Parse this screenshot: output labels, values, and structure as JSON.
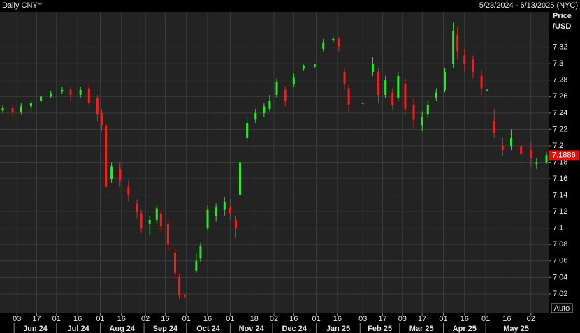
{
  "chart_data": {
    "type": "candlestick",
    "title": "Daily CNY=",
    "date_range": "5/23/2024 - 6/13/2025 (NYC)",
    "y_label": [
      "Price",
      "/USD"
    ],
    "auto_button": "Auto",
    "up_color": "#22ee22",
    "down_color": "#ff1a1a",
    "x": [
      "2024-05-24",
      "2024-05-31",
      "2024-06-06",
      "2024-06-13",
      "2024-06-20",
      "2024-06-27",
      "2024-07-05",
      "2024-07-11",
      "2024-07-18",
      "2024-07-24",
      "2024-07-30",
      "2024-08-02",
      "2024-08-05",
      "2024-08-09",
      "2024-08-15",
      "2024-08-21",
      "2024-08-27",
      "2024-08-30",
      "2024-09-05",
      "2024-09-10",
      "2024-09-13",
      "2024-09-18",
      "2024-09-23",
      "2024-09-26",
      "2024-09-30",
      "2024-10-08",
      "2024-10-11",
      "2024-10-16",
      "2024-10-22",
      "2024-10-28",
      "2024-11-01",
      "2024-11-05",
      "2024-11-08",
      "2024-11-13",
      "2024-11-19",
      "2024-11-25",
      "2024-11-29",
      "2024-12-04",
      "2024-12-10",
      "2024-12-16",
      "2024-12-23",
      "2024-12-31",
      "2025-01-06",
      "2025-01-13",
      "2025-01-17",
      "2025-01-21",
      "2025-01-24",
      "2025-02-03",
      "2025-02-10",
      "2025-02-14",
      "2025-02-19",
      "2025-02-24",
      "2025-02-28",
      "2025-03-05",
      "2025-03-11",
      "2025-03-17",
      "2025-03-21",
      "2025-03-27",
      "2025-04-02",
      "2025-04-08",
      "2025-04-11",
      "2025-04-16",
      "2025-04-22",
      "2025-04-28",
      "2025-05-02",
      "2025-05-07",
      "2025-05-13",
      "2025-05-19",
      "2025-05-26",
      "2025-06-02",
      "2025-06-06",
      "2025-06-13"
    ],
    "open": [
      7.243,
      7.246,
      7.241,
      7.248,
      7.255,
      7.26,
      7.266,
      7.268,
      7.262,
      7.27,
      7.258,
      7.24,
      7.225,
      7.16,
      7.172,
      7.15,
      7.13,
      7.118,
      7.105,
      7.11,
      7.118,
      7.105,
      7.07,
      7.04,
      7.018,
      7.048,
      7.063,
      7.1,
      7.115,
      7.122,
      7.125,
      7.11,
      7.14,
      7.21,
      7.232,
      7.24,
      7.245,
      7.262,
      7.268,
      7.275,
      7.294,
      7.297,
      7.318,
      7.328,
      7.33,
      7.29,
      7.27,
      7.252,
      7.29,
      7.29,
      7.262,
      7.265,
      7.258,
      7.275,
      7.25,
      7.225,
      7.238,
      7.258,
      7.268,
      7.3,
      7.335,
      7.31,
      7.305,
      7.285,
      7.268,
      7.23,
      7.2,
      7.2,
      7.2,
      7.195,
      7.178,
      7.18
    ],
    "high": [
      7.249,
      7.25,
      7.252,
      7.255,
      7.262,
      7.267,
      7.272,
      7.272,
      7.272,
      7.276,
      7.262,
      7.245,
      7.23,
      7.18,
      7.18,
      7.158,
      7.135,
      7.122,
      7.115,
      7.128,
      7.122,
      7.11,
      7.075,
      7.044,
      7.02,
      7.07,
      7.082,
      7.128,
      7.13,
      7.138,
      7.135,
      7.115,
      7.188,
      7.235,
      7.245,
      7.252,
      7.262,
      7.282,
      7.272,
      7.288,
      7.299,
      7.3,
      7.33,
      7.333,
      7.332,
      7.295,
      7.274,
      7.253,
      7.308,
      7.295,
      7.285,
      7.27,
      7.29,
      7.282,
      7.258,
      7.242,
      7.256,
      7.27,
      7.295,
      7.35,
      7.345,
      7.318,
      7.31,
      7.292,
      7.269,
      7.245,
      7.21,
      7.22,
      7.205,
      7.205,
      7.185,
      7.192
    ],
    "low": [
      7.24,
      7.236,
      7.238,
      7.244,
      7.252,
      7.258,
      7.263,
      7.254,
      7.258,
      7.248,
      7.23,
      7.218,
      7.128,
      7.155,
      7.15,
      7.132,
      7.112,
      7.094,
      7.092,
      7.105,
      7.095,
      7.072,
      7.038,
      7.013,
      7.015,
      7.045,
      7.058,
      7.098,
      7.108,
      7.115,
      7.11,
      7.088,
      7.13,
      7.205,
      7.228,
      7.235,
      7.242,
      7.258,
      7.248,
      7.272,
      7.292,
      7.295,
      7.315,
      7.326,
      7.315,
      7.268,
      7.24,
      7.251,
      7.285,
      7.252,
      7.258,
      7.244,
      7.254,
      7.238,
      7.222,
      7.218,
      7.234,
      7.255,
      7.265,
      7.295,
      7.305,
      7.29,
      7.282,
      7.262,
      7.267,
      7.21,
      7.188,
      7.195,
      7.18,
      7.175,
      7.172,
      7.178
    ],
    "close": [
      7.246,
      7.241,
      7.248,
      7.252,
      7.26,
      7.264,
      7.268,
      7.262,
      7.268,
      7.252,
      7.238,
      7.225,
      7.15,
      7.175,
      7.158,
      7.14,
      7.12,
      7.1,
      7.11,
      7.124,
      7.102,
      7.08,
      7.045,
      7.018,
      7.017,
      7.06,
      7.078,
      7.122,
      7.125,
      7.132,
      7.118,
      7.1,
      7.18,
      7.228,
      7.24,
      7.248,
      7.255,
      7.278,
      7.255,
      7.283,
      7.297,
      7.299,
      7.326,
      7.33,
      7.32,
      7.275,
      7.25,
      7.252,
      7.3,
      7.262,
      7.28,
      7.25,
      7.285,
      7.245,
      7.232,
      7.235,
      7.25,
      7.265,
      7.29,
      7.34,
      7.315,
      7.3,
      7.29,
      7.27,
      7.268,
      7.215,
      7.195,
      7.21,
      7.19,
      7.185,
      7.18,
      7.1886
    ],
    "last_price": 7.1886,
    "xlim": [
      "2024-05-23",
      "2025-06-13"
    ],
    "ylim": [
      6.997,
      7.363
    ],
    "yticks": [
      7.02,
      7.04,
      7.06,
      7.08,
      7.1,
      7.12,
      7.14,
      7.16,
      7.18,
      7.2,
      7.22,
      7.24,
      7.26,
      7.28,
      7.3,
      7.32
    ],
    "xticks": [
      {
        "value": "2024-06-03",
        "label": "03"
      },
      {
        "value": "2024-06-17",
        "label": "17"
      },
      {
        "value": "2024-07-01",
        "label": "01"
      },
      {
        "value": "2024-07-16",
        "label": "16"
      },
      {
        "value": "2024-08-01",
        "label": "01"
      },
      {
        "value": "2024-08-16",
        "label": "16"
      },
      {
        "value": "2024-09-02",
        "label": "02"
      },
      {
        "value": "2024-09-16",
        "label": "16"
      },
      {
        "value": "2024-10-01",
        "label": "01"
      },
      {
        "value": "2024-10-16",
        "label": "16"
      },
      {
        "value": "2024-11-01",
        "label": "01"
      },
      {
        "value": "2024-11-18",
        "label": "18"
      },
      {
        "value": "2024-12-02",
        "label": "02"
      },
      {
        "value": "2024-12-16",
        "label": "16"
      },
      {
        "value": "2025-01-01",
        "label": "01"
      },
      {
        "value": "2025-01-16",
        "label": "16"
      },
      {
        "value": "2025-02-03",
        "label": "03"
      },
      {
        "value": "2025-02-17",
        "label": "17"
      },
      {
        "value": "2025-03-03",
        "label": "03"
      },
      {
        "value": "2025-03-17",
        "label": "17"
      },
      {
        "value": "2025-04-01",
        "label": "01"
      },
      {
        "value": "2025-04-16",
        "label": "16"
      },
      {
        "value": "2025-05-01",
        "label": "01"
      },
      {
        "value": "2025-05-16",
        "label": "16"
      },
      {
        "value": "2025-06-02",
        "label": "02"
      }
    ],
    "months": [
      {
        "value": "2024-06-01",
        "label": "Jun 24"
      },
      {
        "value": "2024-07-01",
        "label": "Jul 24"
      },
      {
        "value": "2024-08-01",
        "label": "Aug 24"
      },
      {
        "value": "2024-09-01",
        "label": "Sep 24"
      },
      {
        "value": "2024-10-01",
        "label": "Oct 24"
      },
      {
        "value": "2024-11-01",
        "label": "Nov 24"
      },
      {
        "value": "2024-12-01",
        "label": "Dec 24"
      },
      {
        "value": "2025-01-01",
        "label": "Jan 25"
      },
      {
        "value": "2025-02-01",
        "label": "Feb 25"
      },
      {
        "value": "2025-03-01",
        "label": "Mar 25"
      },
      {
        "value": "2025-04-01",
        "label": "Apr 25"
      },
      {
        "value": "2025-05-01",
        "label": "May 25"
      }
    ],
    "grid": true
  }
}
